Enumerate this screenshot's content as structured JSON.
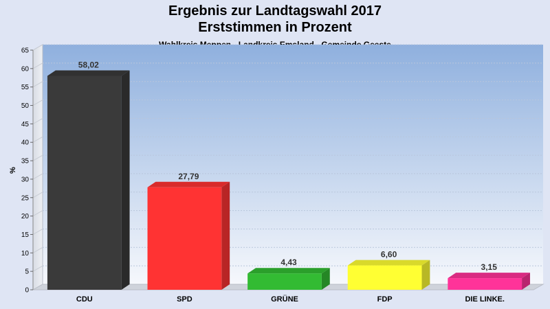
{
  "header": {
    "title_line1": "Ergebnis zur Landtagswahl 2017",
    "title_line2": "Erststimmen in Prozent",
    "subtitle": "Wahlkreis Meppen - Landkreis Emsland - Gemeinde Geeste"
  },
  "chart_data": {
    "type": "bar",
    "title": "Ergebnis zur Landtagswahl 2017 Erststimmen in Prozent",
    "subtitle": "Wahlkreis Meppen - Landkreis Emsland - Gemeinde Geeste",
    "xlabel": "",
    "ylabel": "%",
    "ylim": [
      0,
      65
    ],
    "yticks": [
      0,
      5,
      10,
      15,
      20,
      25,
      30,
      35,
      40,
      45,
      50,
      55,
      60,
      65
    ],
    "categories": [
      "CDU",
      "SPD",
      "GRÜNE",
      "FDP",
      "DIE LINKE."
    ],
    "values": [
      58.02,
      27.79,
      4.43,
      6.6,
      3.15
    ],
    "value_labels": [
      "58,02",
      "27,79",
      "4,43",
      "6,60",
      "3,15"
    ],
    "colors": [
      "#3a3a3a",
      "#ff3333",
      "#33bb33",
      "#ffff33",
      "#ff3399"
    ],
    "grid": true,
    "legend": "none"
  }
}
